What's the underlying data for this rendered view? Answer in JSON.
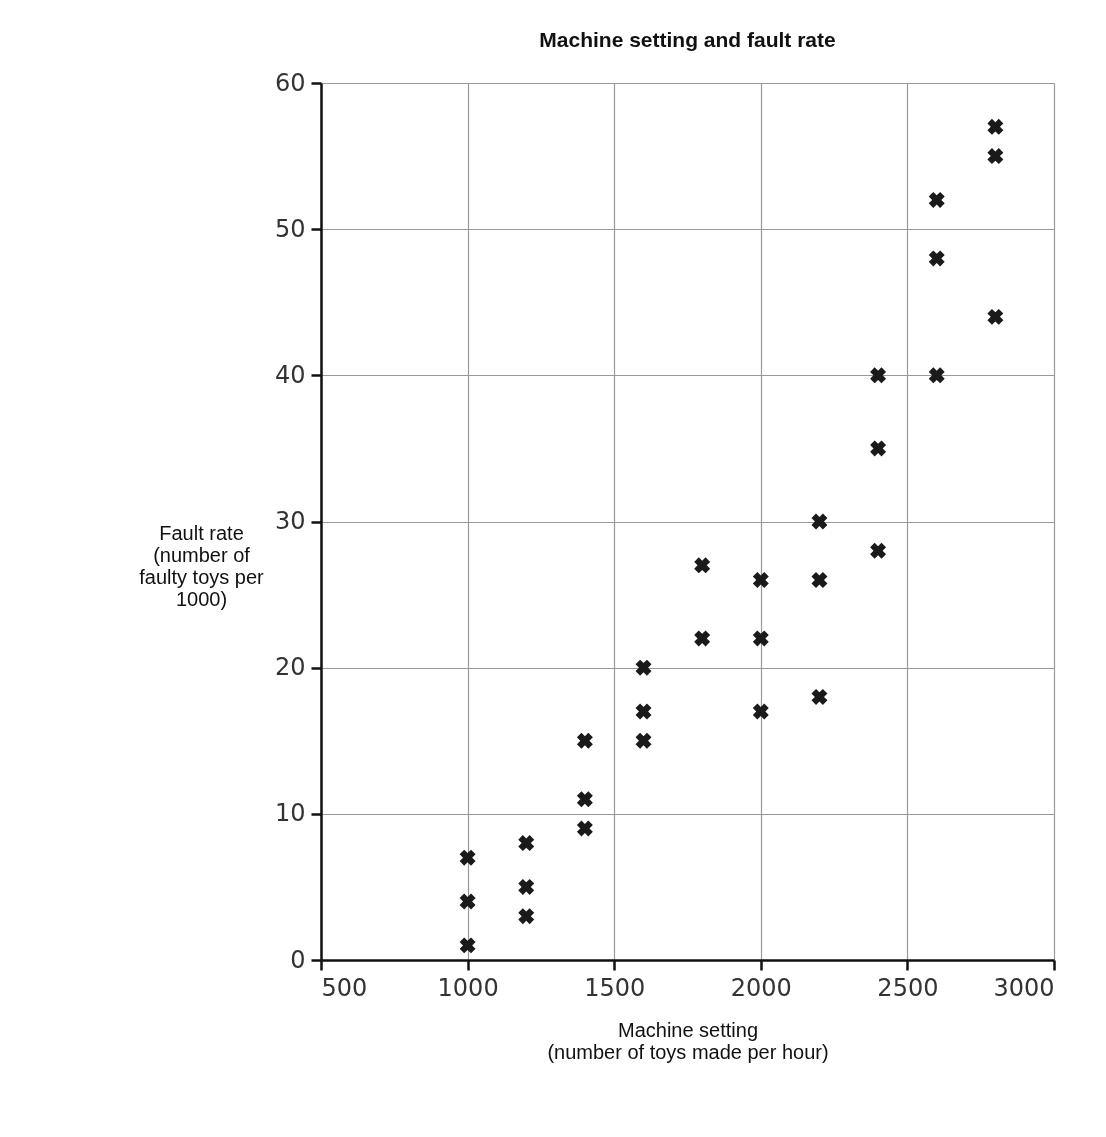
{
  "chart_data": {
    "type": "scatter",
    "title": "Machine setting and fault rate",
    "xlabel": "Machine setting\n(number of toys made per hour)",
    "ylabel": "Fault rate\n(number of\nfaulty toys per\n1000)",
    "x": [
      1000,
      1000,
      1000,
      1200,
      1200,
      1200,
      1400,
      1400,
      1400,
      1600,
      1600,
      1600,
      1800,
      1800,
      2000,
      2000,
      2000,
      2200,
      2200,
      2200,
      2400,
      2400,
      2400,
      2600,
      2600,
      2600,
      2800,
      2800,
      2800
    ],
    "values": [
      7,
      4,
      1,
      8,
      5,
      3,
      15,
      11,
      9,
      20,
      17,
      15,
      27,
      22,
      26,
      22,
      17,
      30,
      26,
      18,
      40,
      35,
      28,
      52,
      48,
      40,
      57,
      55,
      44
    ],
    "color": "#1a1a1a",
    "marker": "cross",
    "xlim": [
      500,
      3000
    ],
    "xticks": [
      500,
      1000,
      1500,
      2000,
      2500,
      3000
    ],
    "ylim": [
      0,
      60
    ],
    "yticks": [
      0,
      10,
      20,
      30,
      40,
      50,
      60
    ],
    "grid": true
  }
}
